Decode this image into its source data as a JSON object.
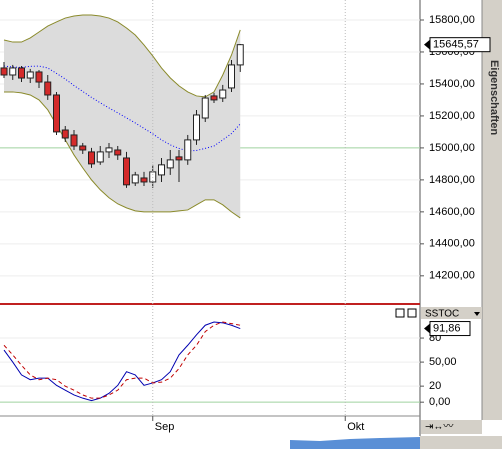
{
  "chart_data": [
    {
      "type": "candlestick",
      "open": [
        15500,
        15456,
        15500,
        15437,
        15475,
        15412,
        15331,
        15112,
        15081,
        15012,
        14975,
        14912,
        14975,
        14987,
        14937,
        14781,
        14812,
        14787,
        14831,
        14875,
        14944,
        14925,
        15050,
        15187,
        15325,
        15312,
        15375,
        15519
      ],
      "high": [
        15537,
        15519,
        15512,
        15494,
        15487,
        15456,
        15350,
        15137,
        15112,
        15031,
        15000,
        15012,
        15031,
        15012,
        14975,
        14850,
        14850,
        14894,
        14937,
        14987,
        14987,
        15081,
        15237,
        15331,
        15344,
        15394,
        15550,
        15650
      ],
      "low": [
        15437,
        15425,
        15412,
        15406,
        15375,
        15300,
        15081,
        15037,
        14987,
        14962,
        14875,
        14894,
        14937,
        14925,
        14750,
        14762,
        14762,
        14750,
        14787,
        14831,
        14787,
        14894,
        15019,
        15162,
        15281,
        15287,
        15350,
        15475
      ],
      "close": [
        15456,
        15500,
        15437,
        15475,
        15412,
        15331,
        15100,
        15062,
        15012,
        14987,
        14900,
        14975,
        15000,
        14956,
        14769,
        14831,
        14787,
        14850,
        14894,
        14925,
        14925,
        15050,
        15206,
        15312,
        15300,
        15362,
        15519,
        15645.57
      ],
      "last_label": "15645,57",
      "up_color": "#ffffff",
      "down_color": "#d42a2a",
      "bands": {
        "upper": [
          15675,
          15662,
          15662,
          15688,
          15725,
          15762,
          15788,
          15812,
          15825,
          15831,
          15831,
          15825,
          15812,
          15788,
          15750,
          15706,
          15644,
          15575,
          15500,
          15438,
          15388,
          15350,
          15325,
          15319,
          15350,
          15456,
          15581,
          15738
        ],
        "middle": [
          15512,
          15506,
          15503,
          15510,
          15512,
          15500,
          15466,
          15431,
          15390,
          15353,
          15316,
          15282,
          15250,
          15219,
          15188,
          15156,
          15122,
          15088,
          15050,
          15019,
          14997,
          14981,
          14984,
          14997,
          15012,
          15050,
          15090,
          15150
        ],
        "lower": [
          15350,
          15350,
          15344,
          15331,
          15300,
          15238,
          15144,
          15050,
          14956,
          14875,
          14800,
          14738,
          14688,
          14650,
          14625,
          14606,
          14600,
          14600,
          14600,
          14600,
          14606,
          14612,
          14644,
          14675,
          14675,
          14644,
          14600,
          14562
        ],
        "color": "#8a8a2a",
        "middle_color": "#0000ff",
        "fill": "#dcdcdc"
      },
      "ylim": [
        14030,
        15925
      ],
      "yticks": [
        {
          "value": 14200,
          "label": "14200,00"
        },
        {
          "value": 14400,
          "label": "14400,00"
        },
        {
          "value": 14600,
          "label": "14600,00"
        },
        {
          "value": 14800,
          "label": "14800,00"
        },
        {
          "value": 15000,
          "label": "15000,00"
        },
        {
          "value": 15200,
          "label": "15200,00"
        },
        {
          "value": 15400,
          "label": "15400,00"
        },
        {
          "value": 15600,
          "label": "15600,00"
        },
        {
          "value": 15800,
          "label": "15800,00"
        }
      ],
      "grid": true
    },
    {
      "type": "line",
      "title": "SSTOC",
      "categories": [
        null,
        null,
        null,
        null,
        null,
        null,
        null,
        null,
        null,
        null,
        null,
        null,
        null,
        null,
        null,
        null,
        null,
        "Sep",
        null,
        null,
        null,
        null,
        null,
        null,
        null,
        null,
        null,
        null,
        null,
        null,
        null,
        null,
        null,
        null,
        null,
        null,
        null,
        null,
        null,
        "Okt",
        null,
        null,
        null,
        null,
        null,
        null,
        null,
        null
      ],
      "series": [
        {
          "color": "#0000b0",
          "dashed": false,
          "values": [
            65,
            50,
            34,
            28,
            30,
            30,
            21,
            15,
            9,
            5,
            2,
            5,
            11,
            21,
            38,
            34,
            21,
            24,
            28,
            38,
            59,
            71,
            84,
            96,
            100,
            99,
            96,
            91.86,
            null,
            null,
            null,
            null,
            null,
            null,
            null,
            null,
            null,
            null,
            null,
            null,
            null,
            null,
            null,
            null,
            null,
            null,
            null,
            null
          ]
        },
        {
          "color": "#c00000",
          "dashed": true,
          "values": [
            71,
            59,
            46,
            34,
            28,
            30,
            28,
            20,
            15,
            9,
            5,
            5,
            9,
            15,
            28,
            30,
            30,
            24,
            25,
            30,
            42,
            59,
            71,
            88,
            96,
            100,
            98,
            96,
            null,
            null,
            null,
            null,
            null,
            null,
            null,
            null,
            null,
            null,
            null,
            null,
            null,
            null,
            null,
            null,
            null,
            null,
            null,
            null
          ]
        }
      ],
      "last_label": "91,86",
      "ylim": [
        -16,
        115
      ],
      "yticks": [
        {
          "value": 0,
          "label": "0,00"
        },
        20,
        {
          "value": 50,
          "label": "50,00"
        },
        80
      ],
      "grid": true
    }
  ]
}
